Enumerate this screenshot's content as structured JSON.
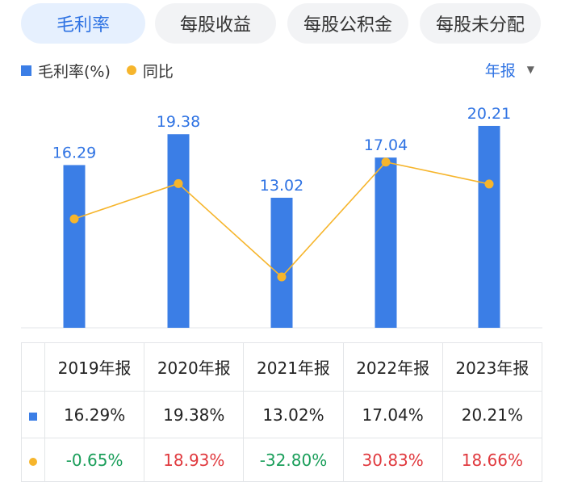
{
  "tabs": [
    {
      "label": "毛利率",
      "active": true
    },
    {
      "label": "每股收益",
      "active": false
    },
    {
      "label": "每股公积金",
      "active": false
    },
    {
      "label": "每股未分配",
      "active": false
    }
  ],
  "legend": {
    "bar": "毛利率(%)",
    "line": "同比"
  },
  "period": {
    "label": "年报",
    "caret": "▼"
  },
  "colors": {
    "bar": "#3b7ee6",
    "line": "#f6b52c",
    "label": "#2f73e3",
    "positive": "#e0393e",
    "negative": "#1a9e5a"
  },
  "chart_data": {
    "type": "bar",
    "title": "",
    "categories": [
      "2019年报",
      "2020年报",
      "2021年报",
      "2022年报",
      "2023年报"
    ],
    "series": [
      {
        "name": "毛利率(%)",
        "type": "bar",
        "values": [
          16.29,
          19.38,
          13.02,
          17.04,
          20.21
        ],
        "labels": [
          "16.29",
          "19.38",
          "13.02",
          "17.04",
          "20.21"
        ]
      },
      {
        "name": "同比",
        "type": "line",
        "values": [
          -0.65,
          18.93,
          -32.8,
          30.83,
          18.66
        ]
      }
    ],
    "xlabel": "",
    "ylabel": "",
    "ylim": [
      0,
      21.5
    ],
    "y2lim": [
      -61,
      58
    ],
    "grid": false,
    "legend": "top-left"
  },
  "table": {
    "rows": [
      {
        "marker": "bar",
        "cells": [
          "16.29%",
          "19.38%",
          "13.02%",
          "17.04%",
          "20.21%"
        ],
        "signs": [
          "plain",
          "plain",
          "plain",
          "plain",
          "plain"
        ]
      },
      {
        "marker": "dot",
        "cells": [
          "-0.65%",
          "18.93%",
          "-32.80%",
          "30.83%",
          "18.66%"
        ],
        "signs": [
          "neg",
          "pos",
          "neg",
          "pos",
          "pos"
        ]
      }
    ]
  }
}
